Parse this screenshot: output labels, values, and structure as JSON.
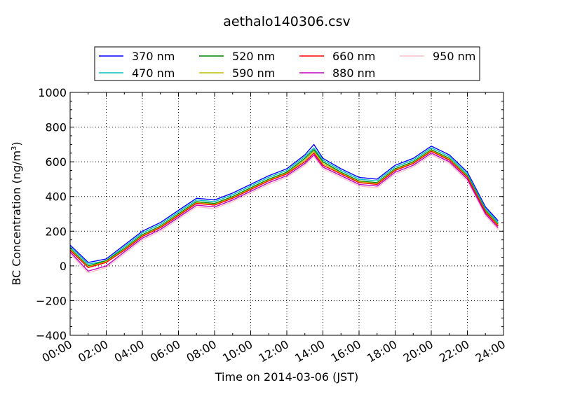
{
  "chart_data": {
    "type": "line",
    "title": "aethalo140306.csv",
    "xlabel": "Time on 2014-03-06 (JST)",
    "ylabel": "BC Concentration (ng/m",
    "ylabel_sup": "3",
    "ylabel_close": ")",
    "xlim": [
      0,
      24
    ],
    "ylim": [
      -400,
      1000
    ],
    "grid": true,
    "legend_position": "top",
    "x_ticks": [
      0,
      2,
      4,
      6,
      8,
      10,
      12,
      14,
      16,
      18,
      20,
      22,
      24
    ],
    "x_tick_labels": [
      "00:00",
      "02:00",
      "04:00",
      "06:00",
      "08:00",
      "10:00",
      "12:00",
      "14:00",
      "16:00",
      "18:00",
      "20:00",
      "22:00",
      "24:00"
    ],
    "y_ticks": [
      -400,
      -200,
      0,
      200,
      400,
      600,
      800,
      1000
    ],
    "y_tick_labels": [
      "−400",
      "−200",
      "0",
      "200",
      "400",
      "600",
      "800",
      "1000"
    ],
    "x": [
      0,
      1,
      2,
      3,
      4,
      5,
      6,
      7,
      8,
      9,
      10,
      11,
      12,
      13,
      13.5,
      14,
      15,
      16,
      17,
      18,
      19,
      20,
      21,
      22,
      23,
      23.7
    ],
    "series": [
      {
        "name": "370 nm",
        "color": "#0000ff",
        "values": [
          120,
          20,
          40,
          120,
          200,
          250,
          320,
          390,
          380,
          420,
          470,
          520,
          560,
          640,
          700,
          620,
          560,
          510,
          500,
          580,
          620,
          690,
          640,
          540,
          340,
          260
        ]
      },
      {
        "name": "470 nm",
        "color": "#00bfbf",
        "values": [
          110,
          10,
          30,
          110,
          190,
          240,
          310,
          380,
          370,
          410,
          460,
          510,
          550,
          630,
          680,
          610,
          550,
          500,
          490,
          570,
          610,
          680,
          630,
          530,
          330,
          250
        ]
      },
      {
        "name": "520 nm",
        "color": "#008000",
        "values": [
          100,
          0,
          30,
          100,
          180,
          230,
          300,
          370,
          360,
          400,
          450,
          500,
          540,
          620,
          670,
          600,
          540,
          490,
          480,
          560,
          600,
          670,
          620,
          520,
          320,
          240
        ]
      },
      {
        "name": "590 nm",
        "color": "#bfbf00",
        "values": [
          95,
          -5,
          25,
          95,
          175,
          225,
          295,
          365,
          355,
          395,
          445,
          495,
          535,
          610,
          660,
          590,
          535,
          485,
          475,
          555,
          595,
          665,
          615,
          515,
          315,
          235
        ]
      },
      {
        "name": "660 nm",
        "color": "#ff0000",
        "values": [
          90,
          -10,
          20,
          90,
          170,
          220,
          290,
          360,
          350,
          390,
          440,
          490,
          530,
          600,
          650,
          580,
          530,
          480,
          470,
          550,
          590,
          660,
          610,
          510,
          310,
          230
        ]
      },
      {
        "name": "880 nm",
        "color": "#bf00bf",
        "values": [
          80,
          -30,
          0,
          80,
          160,
          210,
          280,
          350,
          340,
          380,
          430,
          480,
          520,
          590,
          640,
          570,
          520,
          470,
          460,
          540,
          580,
          650,
          600,
          500,
          300,
          220
        ]
      },
      {
        "name": "950 nm",
        "color": "#ffc0cb",
        "values": [
          70,
          -40,
          -10,
          70,
          150,
          200,
          270,
          340,
          330,
          370,
          420,
          470,
          510,
          580,
          630,
          560,
          510,
          460,
          450,
          530,
          570,
          640,
          590,
          490,
          290,
          210
        ]
      }
    ]
  }
}
